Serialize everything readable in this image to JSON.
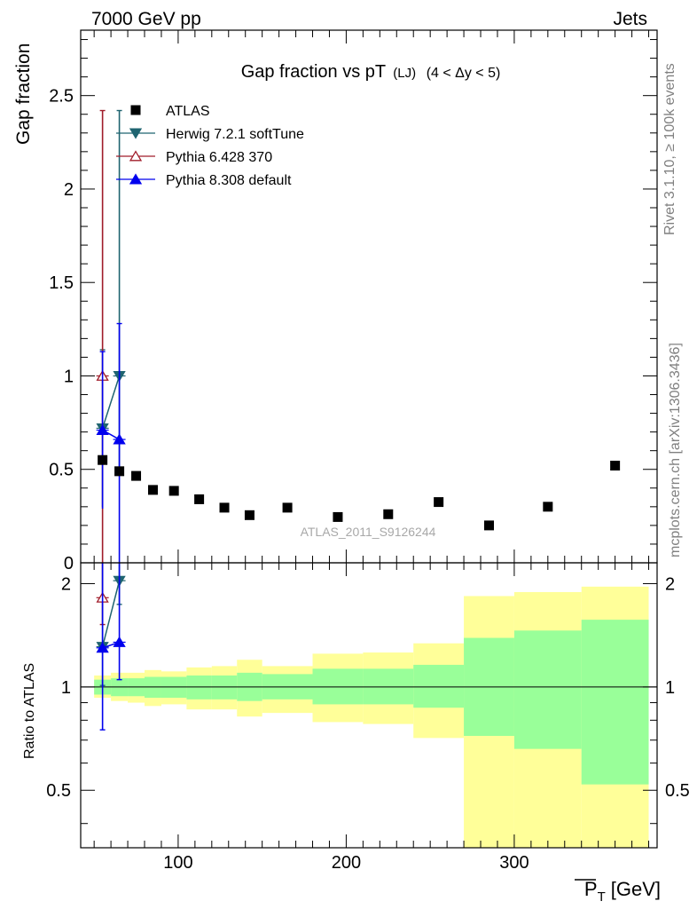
{
  "header": {
    "left": "7000 GeV pp",
    "right": "Jets"
  },
  "side_labels": {
    "rivet": "Rivet 3.1.10, ≥ 100k events",
    "mcplots": "mcplots.cern.ch [arXiv:1306.3436]"
  },
  "chart_data": {
    "type": "scatter",
    "title": "Gap fraction vs pT",
    "title_sub": "(LJ)",
    "title_range": "(4 < Δy < 5)",
    "analysis_tag": "ATLAS_2011_S9126244",
    "xlabel": "P",
    "xlabel_sub": "T",
    "xlabel_unit": "[GeV]",
    "ylabel": "Gap fraction",
    "ratio_ylabel": "Ratio to ATLAS",
    "xlim": [
      42,
      385
    ],
    "ylim": [
      0,
      2.85
    ],
    "ratio_ylim": [
      0.34,
      2.3
    ],
    "x_ticks": [
      100,
      200,
      300
    ],
    "y_ticks": [
      0,
      0.5,
      1,
      1.5,
      2,
      2.5
    ],
    "y_tick_labels": [
      "0",
      "0.5",
      "1",
      "1.5",
      "2",
      "2.5"
    ],
    "ratio_ticks": [
      0.5,
      1,
      2
    ],
    "ratio_tick_labels": [
      "0.5",
      "1",
      "2"
    ],
    "legend_position": "top-left",
    "data": {
      "name": "ATLAS",
      "color": "#000000",
      "x": [
        55,
        65,
        75,
        85,
        97.5,
        112.5,
        127.5,
        142.5,
        165,
        195,
        225,
        255,
        285,
        320,
        360
      ],
      "y": [
        0.55,
        0.49,
        0.465,
        0.39,
        0.385,
        0.34,
        0.295,
        0.255,
        0.295,
        0.245,
        0.26,
        0.325,
        0.2,
        0.3,
        0.52
      ]
    },
    "mc": [
      {
        "name": "Herwig 7.2.1 softTune",
        "color": "#1f6470",
        "marker": "triangle-down-filled",
        "x": [
          55,
          65
        ],
        "y": [
          0.72,
          1.0
        ],
        "yerr_lo": [
          0.42,
          0.5
        ],
        "yerr_hi": [
          0.42,
          1.42
        ],
        "ratio": [
          1.31,
          2.04
        ],
        "ratio_lo": [
          0.3,
          0.3
        ],
        "ratio_hi": [
          2.4,
          2.4
        ]
      },
      {
        "name": "Pythia 6.428 370",
        "color": "#a01c2a",
        "marker": "triangle-up-open",
        "x": [
          55
        ],
        "y": [
          1.0
        ],
        "yerr_lo": [
          1.0
        ],
        "yerr_hi": [
          1.42
        ],
        "ratio": [
          1.82
        ],
        "ratio_lo": [
          0.3
        ],
        "ratio_hi": [
          2.4
        ]
      },
      {
        "name": "Pythia 8.308 default",
        "color": "#0000ee",
        "marker": "triangle-up-filled",
        "x": [
          55,
          65
        ],
        "y": [
          0.71,
          0.66
        ],
        "yerr_lo": [
          0.42,
          0.66
        ],
        "yerr_hi": [
          0.42,
          0.62
        ],
        "ratio": [
          1.3,
          1.35
        ],
        "ratio_lo": [
          0.55,
          0.3
        ],
        "ratio_hi": [
          2.05,
          2.4
        ]
      }
    ],
    "ratio_bands": [
      {
        "x0": 50,
        "x1": 60,
        "g_lo": 0.95,
        "g_hi": 1.05,
        "y_lo": 0.93,
        "y_hi": 1.08
      },
      {
        "x0": 60,
        "x1": 70,
        "g_lo": 0.94,
        "g_hi": 1.06,
        "y_lo": 0.91,
        "y_hi": 1.1
      },
      {
        "x0": 70,
        "x1": 80,
        "g_lo": 0.94,
        "g_hi": 1.06,
        "y_lo": 0.9,
        "y_hi": 1.1
      },
      {
        "x0": 80,
        "x1": 90,
        "g_lo": 0.93,
        "g_hi": 1.07,
        "y_lo": 0.88,
        "y_hi": 1.12
      },
      {
        "x0": 90,
        "x1": 105,
        "g_lo": 0.93,
        "g_hi": 1.07,
        "y_lo": 0.89,
        "y_hi": 1.11
      },
      {
        "x0": 105,
        "x1": 120,
        "g_lo": 0.92,
        "g_hi": 1.08,
        "y_lo": 0.86,
        "y_hi": 1.14
      },
      {
        "x0": 120,
        "x1": 135,
        "g_lo": 0.92,
        "g_hi": 1.08,
        "y_lo": 0.86,
        "y_hi": 1.15
      },
      {
        "x0": 135,
        "x1": 150,
        "g_lo": 0.91,
        "g_hi": 1.1,
        "y_lo": 0.82,
        "y_hi": 1.2
      },
      {
        "x0": 150,
        "x1": 180,
        "g_lo": 0.92,
        "g_hi": 1.09,
        "y_lo": 0.84,
        "y_hi": 1.15
      },
      {
        "x0": 180,
        "x1": 210,
        "g_lo": 0.89,
        "g_hi": 1.13,
        "y_lo": 0.79,
        "y_hi": 1.25
      },
      {
        "x0": 210,
        "x1": 240,
        "g_lo": 0.89,
        "g_hi": 1.13,
        "y_lo": 0.78,
        "y_hi": 1.26
      },
      {
        "x0": 240,
        "x1": 270,
        "g_lo": 0.87,
        "g_hi": 1.16,
        "y_lo": 0.71,
        "y_hi": 1.34
      },
      {
        "x0": 270,
        "x1": 300,
        "g_lo": 0.72,
        "g_hi": 1.39,
        "y_lo": 0.3,
        "y_hi": 1.84
      },
      {
        "x0": 300,
        "x1": 340,
        "g_lo": 0.66,
        "g_hi": 1.46,
        "y_lo": 0.3,
        "y_hi": 1.89
      },
      {
        "x0": 340,
        "x1": 380,
        "g_lo": 0.52,
        "g_hi": 1.57,
        "y_lo": 0.3,
        "y_hi": 1.96
      }
    ],
    "band_colors": {
      "green": "#99ff99",
      "yellow": "#ffff99"
    }
  }
}
